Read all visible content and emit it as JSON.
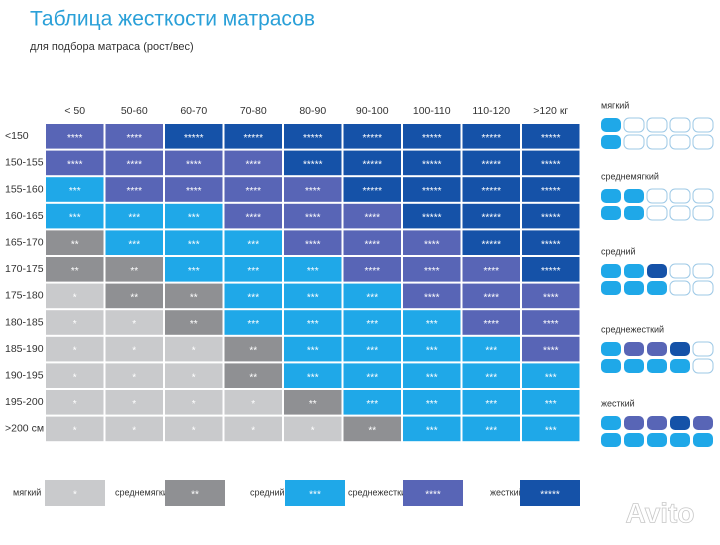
{
  "header": {
    "title": "Таблица жесткости матрасов",
    "subtitle": "для подбора матраса (рост/вес)"
  },
  "table": {
    "columns": [
      "< 50",
      "50-60",
      "60-70",
      "70-80",
      "80-90",
      "90-100",
      "100-110",
      "110-120",
      ">120 кг"
    ],
    "row_labels": [
      "<150",
      "150-155",
      "155-160",
      "160-165",
      "165-170",
      "170-175",
      "175-180",
      "180-185",
      "185-190",
      "190-195",
      "195-200",
      ">200 см"
    ],
    "rows": [
      [
        "****",
        "****",
        "*****",
        "*****",
        "*****",
        "*****",
        "*****",
        "*****",
        "*****"
      ],
      [
        "****",
        "****",
        "****",
        "****",
        "*****",
        "*****",
        "*****",
        "*****",
        "*****"
      ],
      [
        "***",
        "****",
        "****",
        "****",
        "****",
        "*****",
        "*****",
        "*****",
        "*****"
      ],
      [
        "***",
        "***",
        "***",
        "****",
        "****",
        "****",
        "*****",
        "*****",
        "*****"
      ],
      [
        "**",
        "***",
        "***",
        "***",
        "****",
        "****",
        "****",
        "*****",
        "*****"
      ],
      [
        "**",
        "**",
        "***",
        "***",
        "***",
        "****",
        "****",
        "****",
        "*****"
      ],
      [
        "*",
        "**",
        "**",
        "***",
        "***",
        "***",
        "****",
        "****",
        "****"
      ],
      [
        "*",
        "*",
        "**",
        "***",
        "***",
        "***",
        "***",
        "****",
        "****"
      ],
      [
        "*",
        "*",
        "*",
        "**",
        "***",
        "***",
        "***",
        "***",
        "****"
      ],
      [
        "*",
        "*",
        "*",
        "**",
        "***",
        "***",
        "***",
        "***",
        "***"
      ],
      [
        "*",
        "*",
        "*",
        "*",
        "**",
        "***",
        "***",
        "***",
        "***"
      ],
      [
        "*",
        "*",
        "*",
        "*",
        "*",
        "**",
        "***",
        "***",
        "***"
      ]
    ]
  },
  "legend": [
    {
      "name": "мягкий",
      "stars": "*"
    },
    {
      "name": "среднемягкий",
      "stars": "**"
    },
    {
      "name": "средний",
      "stars": "***"
    },
    {
      "name": "среднежесткий",
      "stars": "****"
    },
    {
      "name": "жесткий",
      "stars": "*****"
    }
  ],
  "watermark": "Avito"
}
